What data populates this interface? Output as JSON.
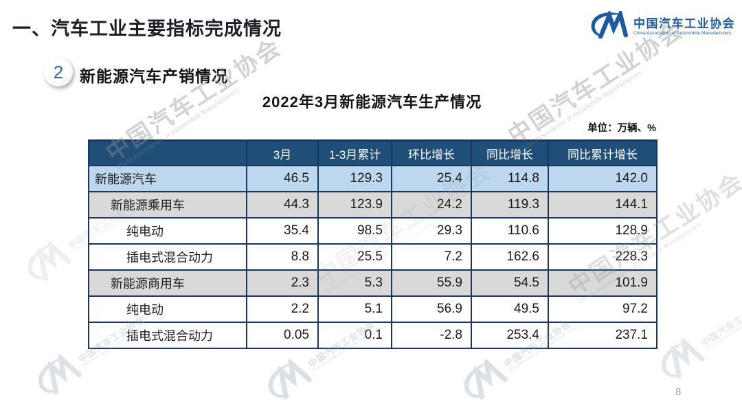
{
  "page": {
    "heading": "一、汽车工业主要指标完成情况",
    "section_badge": "2",
    "section_title": "新能源汽车产销情况",
    "table_title": "2022年3月新能源汽车生产情况",
    "unit_label": "单位：万辆、%",
    "page_number": "8"
  },
  "logo": {
    "monogram": "CM",
    "name_cn": "中国汽车工业协会",
    "name_en": "China Association of Automobile Manufacturers",
    "color": "#1C5AA5"
  },
  "watermark": {
    "text_cn": "中国汽车工业协会",
    "text_en": "China Association of Automobile Manufacturers"
  },
  "table": {
    "columns": [
      "",
      "3月",
      "1-3月累计",
      "环比增长",
      "同比增长",
      "同比累计增长"
    ],
    "rows": [
      {
        "label": "新能源汽车",
        "indent": 0,
        "bg": "#BDD7EE",
        "values": [
          "46.5",
          "129.3",
          "25.4",
          "114.8",
          "142.0"
        ]
      },
      {
        "label": "新能源乘用车",
        "indent": 1,
        "bg": "#D9D9D9",
        "values": [
          "44.3",
          "123.9",
          "24.2",
          "119.3",
          "144.1"
        ]
      },
      {
        "label": "纯电动",
        "indent": 2,
        "bg": "#FFFFFF",
        "values": [
          "35.4",
          "98.5",
          "29.3",
          "110.6",
          "128.9"
        ]
      },
      {
        "label": "插电式混合动力",
        "indent": 2,
        "bg": "#FFFFFF",
        "values": [
          "8.8",
          "25.5",
          "7.2",
          "162.6",
          "228.3"
        ]
      },
      {
        "label": "新能源商用车",
        "indent": 1,
        "bg": "#D9D9D9",
        "values": [
          "2.3",
          "5.3",
          "55.9",
          "54.5",
          "101.9"
        ]
      },
      {
        "label": "纯电动",
        "indent": 2,
        "bg": "#FFFFFF",
        "values": [
          "2.2",
          "5.1",
          "56.9",
          "49.5",
          "97.2"
        ]
      },
      {
        "label": "插电式混合动力",
        "indent": 2,
        "bg": "#FFFFFF",
        "values": [
          "0.05",
          "0.1",
          "-2.8",
          "253.4",
          "237.1"
        ]
      }
    ],
    "colors": {
      "header_bg": "#1F4E79",
      "header_text": "#FFFFFF",
      "border": "#17375E",
      "row_highlight_blue": "#BDD7EE",
      "row_highlight_gray": "#D9D9D9"
    }
  }
}
